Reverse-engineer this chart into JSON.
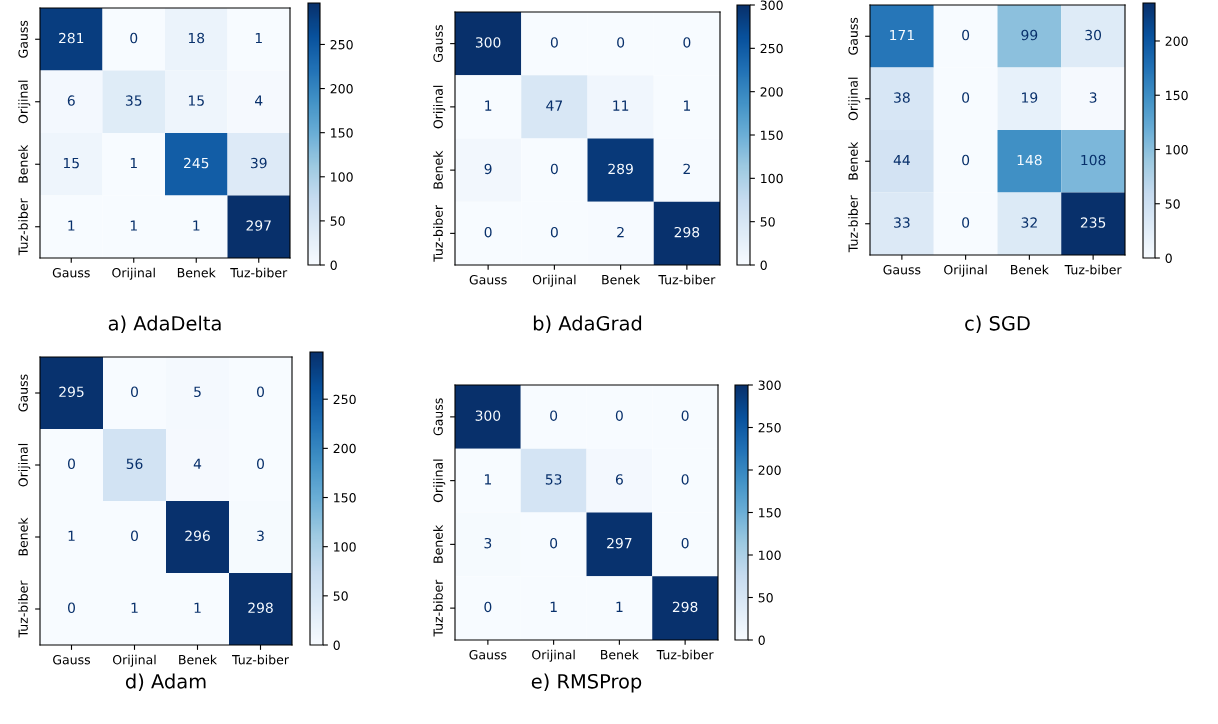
{
  "chart_data": [
    {
      "type": "heatmap",
      "title": "a) AdaDelta",
      "categories": [
        "Gauss",
        "Orijinal",
        "Benek",
        "Tuz-biber"
      ],
      "y_categories": [
        "Gauss",
        "Orijinal",
        "Benek",
        "Tuz-biber"
      ],
      "cells": [
        [
          281,
          0,
          18,
          1
        ],
        [
          6,
          35,
          15,
          4
        ],
        [
          15,
          1,
          245,
          39
        ],
        [
          1,
          1,
          1,
          297
        ]
      ],
      "clim": [
        0,
        297
      ],
      "cticks": [
        0,
        50,
        100,
        150,
        200,
        250
      ],
      "data_labels": true
    },
    {
      "type": "heatmap",
      "title": "b) AdaGrad",
      "categories": [
        "Gauss",
        "Orijinal",
        "Benek",
        "Tuz-biber"
      ],
      "y_categories": [
        "Gauss",
        "Orijinal",
        "Benek",
        "Tuz-biber"
      ],
      "cells": [
        [
          300,
          0,
          0,
          0
        ],
        [
          1,
          47,
          11,
          1
        ],
        [
          9,
          0,
          289,
          2
        ],
        [
          0,
          0,
          2,
          298
        ]
      ],
      "clim": [
        0,
        300
      ],
      "cticks": [
        0,
        50,
        100,
        150,
        200,
        250,
        300
      ],
      "data_labels": true
    },
    {
      "type": "heatmap",
      "title": "c) SGD",
      "categories": [
        "Gauss",
        "Orijinal",
        "Benek",
        "Tuz-biber"
      ],
      "y_categories": [
        "Gauss",
        "Orijinal",
        "Benek",
        "Tuz-biber"
      ],
      "cells": [
        [
          171,
          0,
          99,
          30
        ],
        [
          38,
          0,
          19,
          3
        ],
        [
          44,
          0,
          148,
          108
        ],
        [
          33,
          0,
          32,
          235
        ]
      ],
      "clim": [
        0,
        235
      ],
      "cticks": [
        0,
        50,
        100,
        150,
        200
      ],
      "data_labels": true
    },
    {
      "type": "heatmap",
      "title": "d) Adam",
      "categories": [
        "Gauss",
        "Orijinal",
        "Benek",
        "Tuz-biber"
      ],
      "y_categories": [
        "Gauss",
        "Orijinal",
        "Benek",
        "Tuz-biber"
      ],
      "cells": [
        [
          295,
          0,
          5,
          0
        ],
        [
          0,
          56,
          4,
          0
        ],
        [
          1,
          0,
          296,
          3
        ],
        [
          0,
          1,
          1,
          298
        ]
      ],
      "clim": [
        0,
        298
      ],
      "cticks": [
        0,
        50,
        100,
        150,
        200,
        250
      ],
      "data_labels": true
    },
    {
      "type": "heatmap",
      "title": "e) RMSProp",
      "categories": [
        "Gauss",
        "Orijinal",
        "Benek",
        "Tuz-biber"
      ],
      "y_categories": [
        "Gauss",
        "Orijinal",
        "Benek",
        "Tuz-biber"
      ],
      "cells": [
        [
          300,
          0,
          0,
          0
        ],
        [
          1,
          53,
          6,
          0
        ],
        [
          3,
          0,
          297,
          0
        ],
        [
          0,
          1,
          1,
          298
        ]
      ],
      "clim": [
        0,
        300
      ],
      "cticks": [
        0,
        50,
        100,
        150,
        200,
        250,
        300
      ],
      "data_labels": true
    }
  ]
}
